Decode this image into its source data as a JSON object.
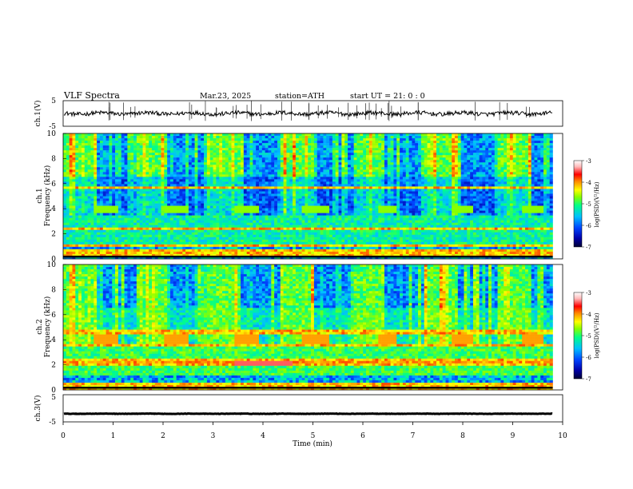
{
  "header": {
    "title": "VLF  Spectra",
    "date": "Mar.23, 2025",
    "station": "station=ATH",
    "start": "start  UT  =    21: 0   : 0"
  },
  "colors": {
    "spectrogram_scale": [
      "#000033",
      "#0000aa",
      "#0044ff",
      "#00c0ff",
      "#00ff88",
      "#88ff00",
      "#ffff00",
      "#ff8800",
      "#ff0000",
      "#ffbbbb",
      "#ffffff"
    ],
    "trace": "#000000"
  },
  "chart_data": [
    {
      "id": "ch1_waveform",
      "type": "line",
      "ylabel": "ch.1(V)",
      "ylim": [
        -5,
        5
      ],
      "y_ticks": [
        "5",
        "-5"
      ],
      "x_range_min": [
        0,
        9.8
      ],
      "mean_level": 0,
      "description_values": {
        "baseline_v": 0,
        "noise_amplitude_v": 0.8,
        "spike_amplitude_v": 3
      }
    },
    {
      "id": "ch1_spectrogram",
      "type": "heatmap",
      "ylabel": "ch.1\nFrequency (kHz)",
      "ylim": [
        0,
        10
      ],
      "y_ticks": [
        "0",
        "2",
        "4",
        "6",
        "8",
        "10"
      ],
      "colorbar": {
        "label": "log(PSD)(V²/Hz)",
        "range": [
          -7,
          -3
        ],
        "ticks": [
          "-3",
          "-4",
          "-5",
          "-6",
          "-7"
        ]
      },
      "x_range_min": [
        0,
        9.8
      ],
      "features": {
        "tone_band_khz": [
          3.7,
          4.3
        ],
        "tone_bursts_min": [
          [
            0.6,
            1.1
          ],
          [
            2.0,
            2.5
          ],
          [
            3.4,
            3.9
          ],
          [
            4.8,
            5.3
          ],
          [
            6.3,
            6.7
          ],
          [
            7.8,
            8.2
          ],
          [
            9.2,
            9.6
          ]
        ],
        "quiet_band_khz": [
          3.5,
          6.5
        ],
        "lines_khz": [
          0.3,
          0.6,
          1.0,
          2.4,
          5.7
        ]
      }
    },
    {
      "id": "ch2_spectrogram",
      "type": "heatmap",
      "ylabel": "ch.2\nFrequency (kHz)",
      "ylim": [
        0,
        10
      ],
      "y_ticks": [
        "0",
        "2",
        "4",
        "6",
        "8",
        "10"
      ],
      "colorbar": {
        "label": "log(PSD)(V²/Hz)",
        "range": [
          -7,
          -3
        ],
        "ticks": [
          "-3",
          "-4",
          "-5",
          "-6",
          "-7"
        ]
      },
      "x_range_min": [
        0,
        9.8
      ],
      "features": {
        "tone_band_khz": [
          3.6,
          4.4
        ],
        "tone_bursts_min": [
          [
            0.6,
            1.1
          ],
          [
            2.0,
            2.5
          ],
          [
            3.4,
            3.9
          ],
          [
            4.8,
            5.3
          ],
          [
            6.3,
            6.7
          ],
          [
            7.8,
            8.2
          ],
          [
            9.2,
            9.6
          ]
        ],
        "lines_khz": [
          0.2,
          0.5,
          2.1,
          2.3,
          3.5,
          4.6
        ]
      }
    },
    {
      "id": "ch3_waveform",
      "type": "line",
      "ylabel": "ch.3(V)",
      "ylim": [
        -5,
        5
      ],
      "y_ticks": [
        "5",
        "-5"
      ],
      "x_range_min": [
        0,
        9.8
      ],
      "mean_level": -2
    }
  ],
  "x_axis": {
    "label": "Time  (min)",
    "ticks": [
      "0",
      "1",
      "2",
      "3",
      "4",
      "5",
      "6",
      "7",
      "8",
      "9",
      "10"
    ],
    "xlim": [
      0,
      10
    ]
  }
}
